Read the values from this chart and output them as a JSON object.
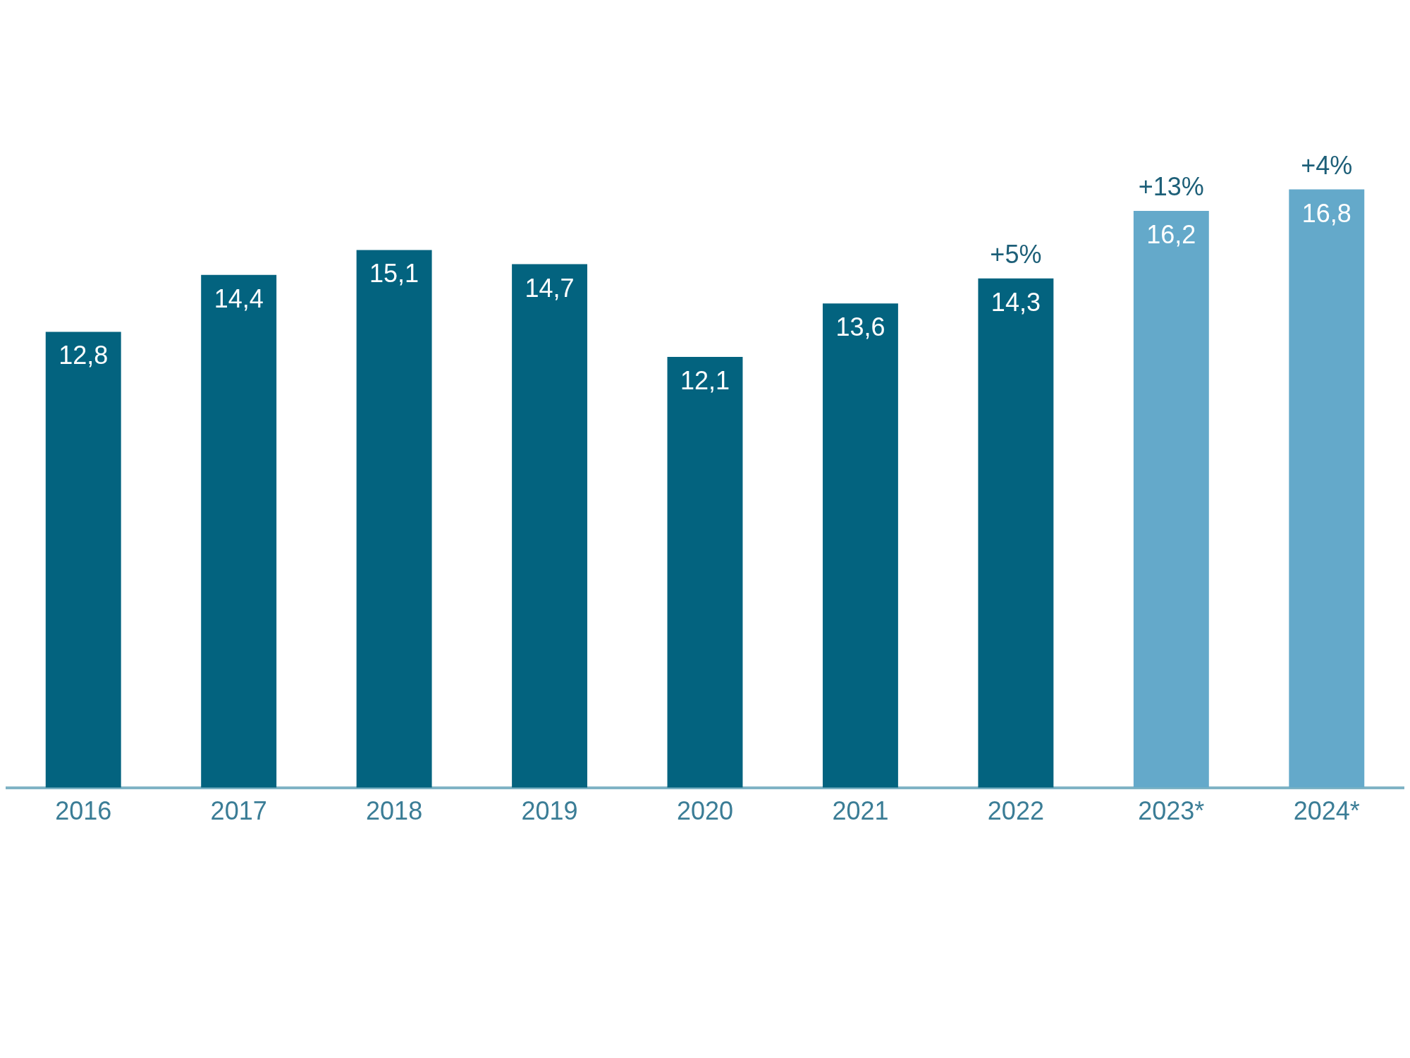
{
  "chart_data": {
    "type": "bar",
    "categories": [
      "2016",
      "2017",
      "2018",
      "2019",
      "2020",
      "2021",
      "2022",
      "2023*",
      "2024*"
    ],
    "values": [
      12.8,
      14.4,
      15.1,
      14.7,
      12.1,
      13.6,
      14.3,
      16.2,
      16.8
    ],
    "value_labels": [
      "12,8",
      "14,4",
      "15,1",
      "14,7",
      "12,1",
      "13,6",
      "14,3",
      "16,2",
      "16,8"
    ],
    "colors": [
      "#03637f",
      "#03637f",
      "#03637f",
      "#03637f",
      "#03637f",
      "#03637f",
      "#03637f",
      "#64a9ca",
      "#64a9ca"
    ],
    "annotations": [
      {
        "text": "+5%",
        "x": "2022",
        "y": 14.3
      },
      {
        "text": "+13%",
        "x": "2023*",
        "y": 16.2
      },
      {
        "text": "+4%",
        "x": "2024*",
        "y": 16.8
      }
    ],
    "grid": false,
    "legend": false,
    "tick_labels": "x"
  }
}
